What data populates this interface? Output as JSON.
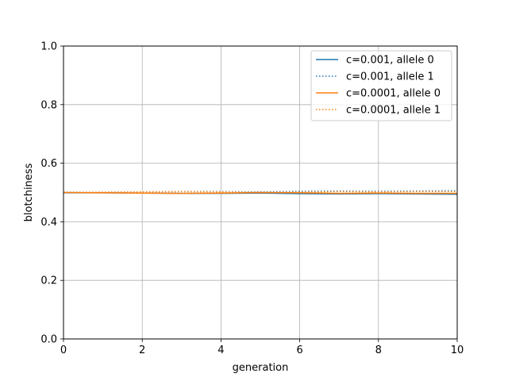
{
  "chart_data": {
    "type": "line",
    "title": "",
    "xlabel": "generation",
    "ylabel": "blotchiness",
    "xlim": [
      0,
      10
    ],
    "ylim": [
      0.0,
      1.0
    ],
    "xticks": [
      "0",
      "2",
      "4",
      "6",
      "8",
      "10"
    ],
    "yticks": [
      "0.0",
      "0.2",
      "0.4",
      "0.6",
      "0.8",
      "1.0"
    ],
    "grid": true,
    "legend_position": "top-right",
    "x": [
      0,
      1,
      2,
      3,
      4,
      5,
      6,
      7,
      8,
      9,
      10
    ],
    "series": [
      {
        "name": "c=0.001, allele 0",
        "color": "#1f77b4",
        "style": "solid",
        "values": [
          0.499,
          0.499,
          0.498,
          0.497,
          0.497,
          0.498,
          0.496,
          0.495,
          0.496,
          0.495,
          0.494
        ]
      },
      {
        "name": "c=0.001, allele 1",
        "color": "#1f77b4",
        "style": "dotted",
        "values": [
          0.501,
          0.501,
          0.502,
          0.503,
          0.503,
          0.502,
          0.504,
          0.505,
          0.504,
          0.505,
          0.506
        ]
      },
      {
        "name": "c=0.0001, allele 0",
        "color": "#ff7f0e",
        "style": "solid",
        "values": [
          0.5,
          0.499,
          0.498,
          0.497,
          0.498,
          0.5,
          0.499,
          0.497,
          0.498,
          0.497,
          0.497
        ]
      },
      {
        "name": "c=0.0001, allele 1",
        "color": "#ff7f0e",
        "style": "dotted",
        "values": [
          0.5,
          0.501,
          0.502,
          0.503,
          0.502,
          0.5,
          0.501,
          0.503,
          0.502,
          0.503,
          0.503
        ]
      }
    ]
  }
}
